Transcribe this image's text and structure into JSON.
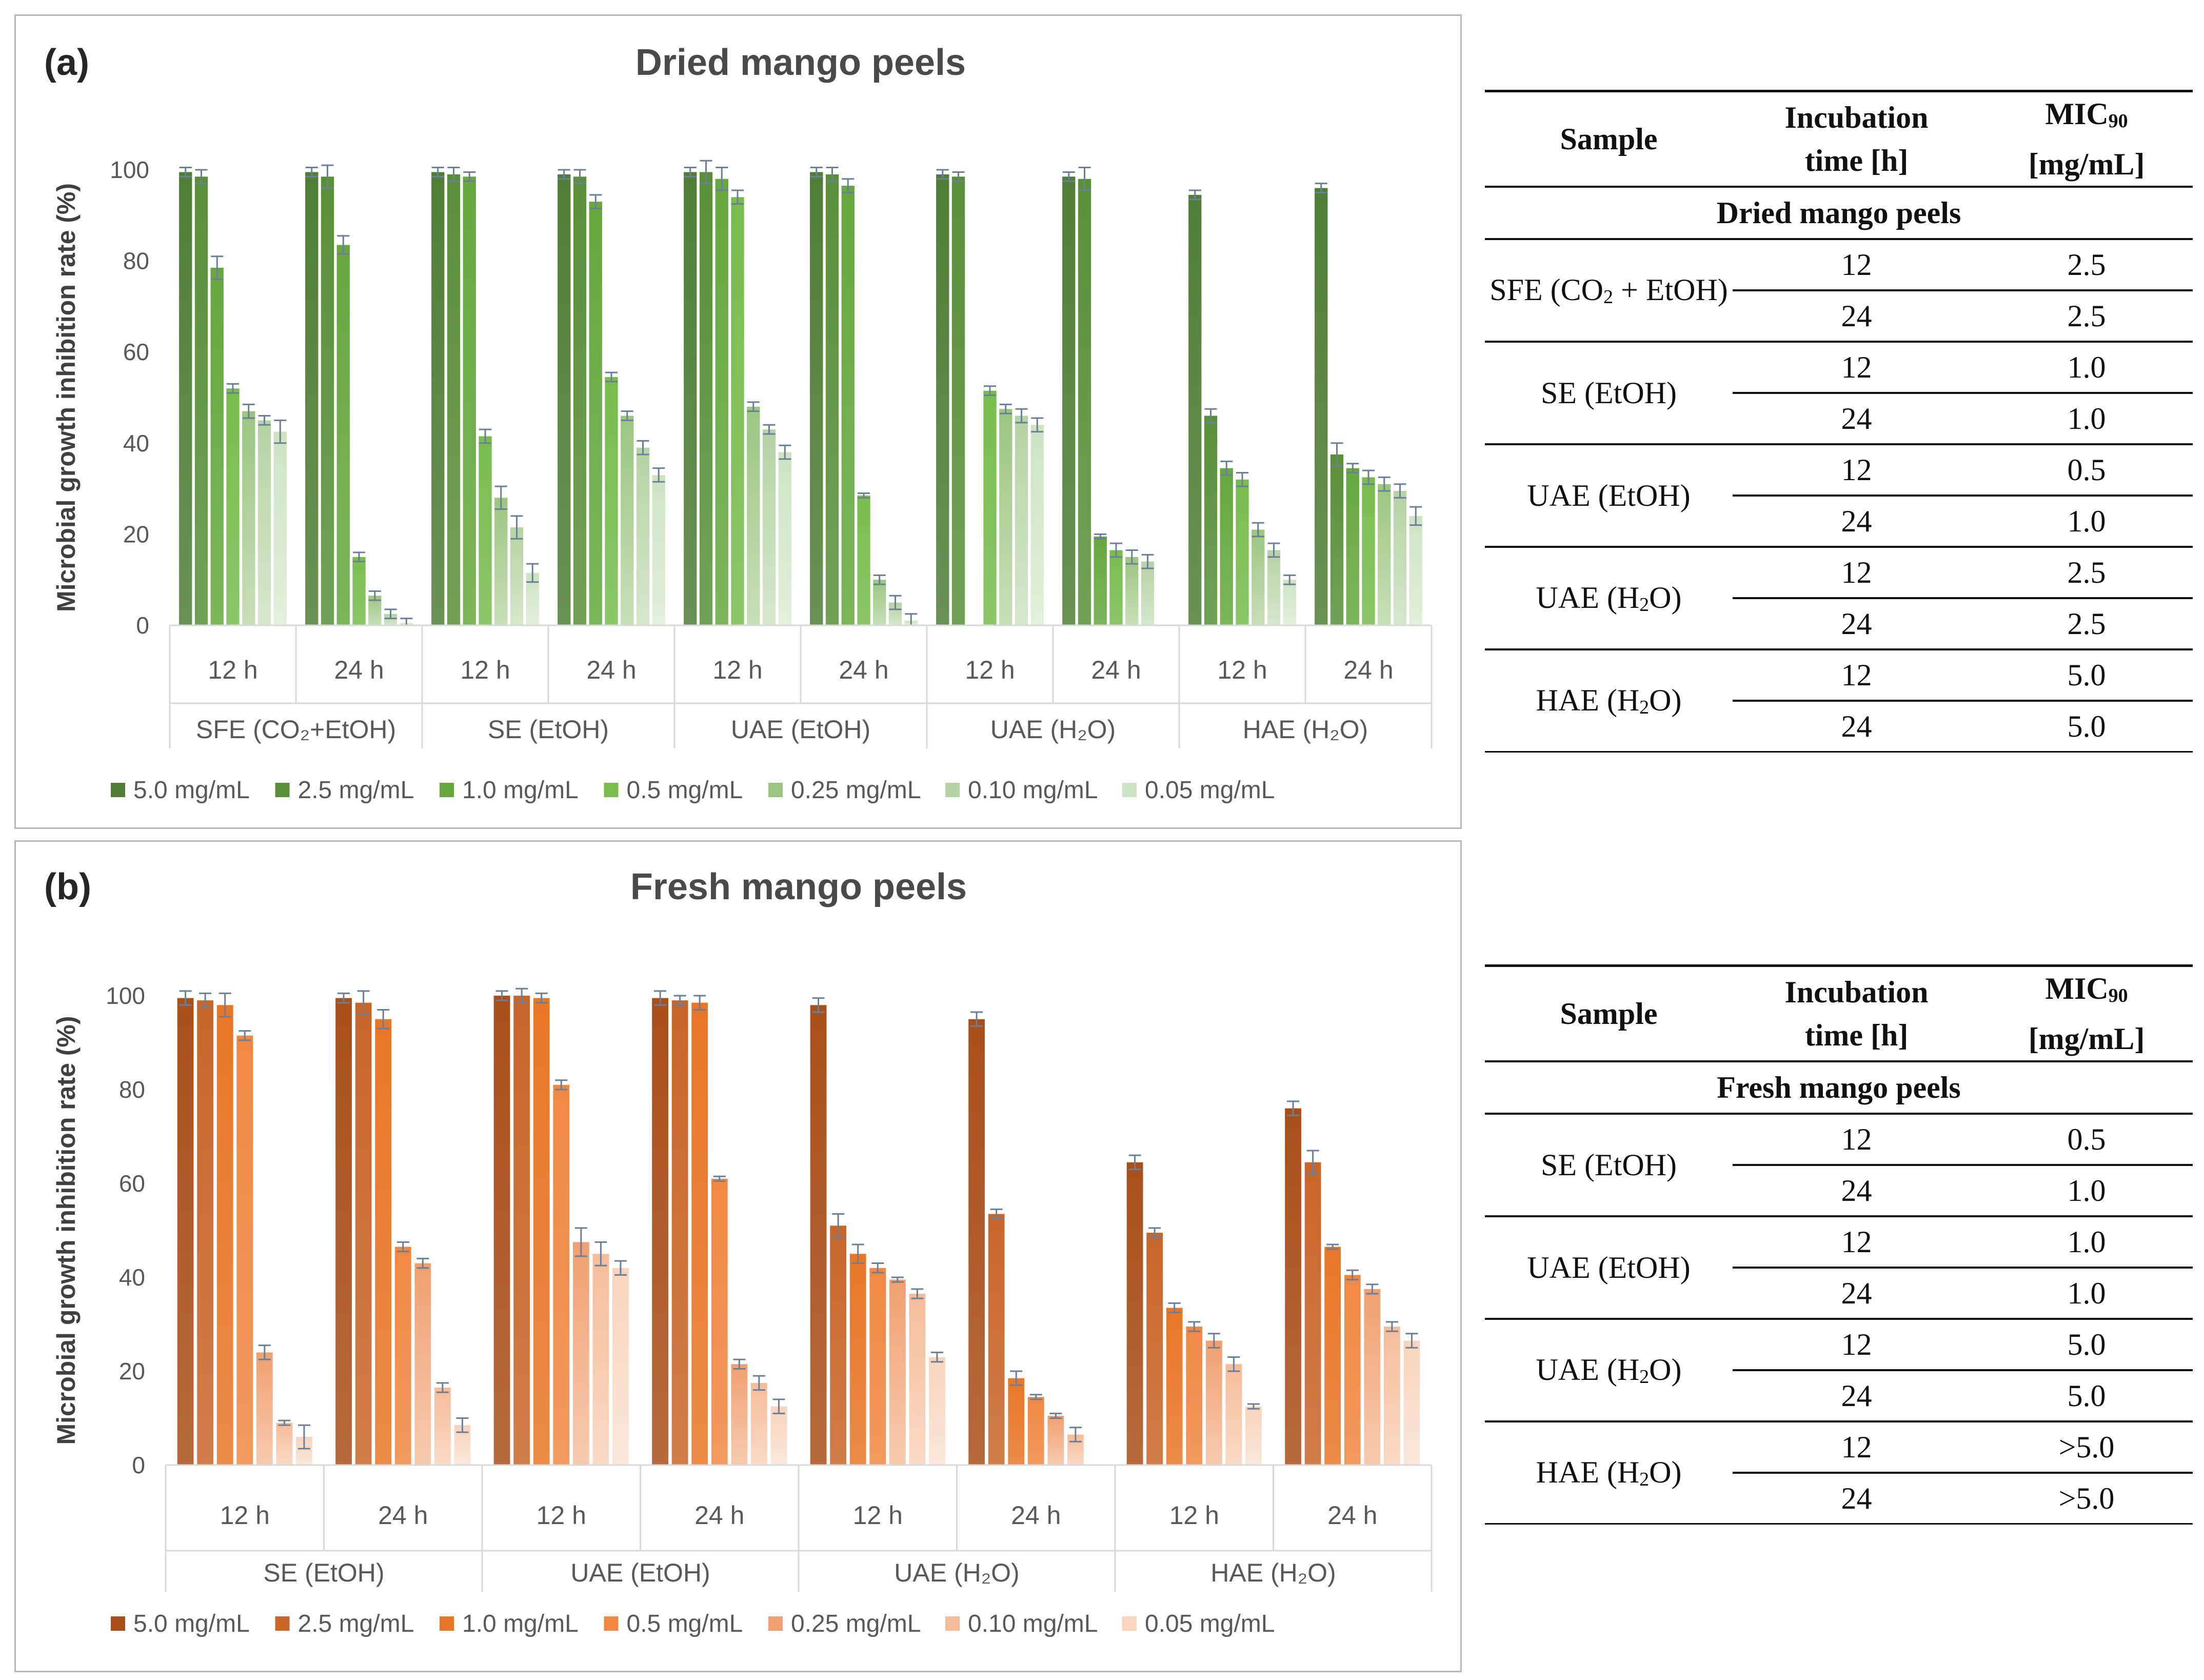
{
  "colors": {
    "green": [
      "#507e36",
      "#5a8f3a",
      "#66a83e",
      "#78bc4e",
      "#9cc581",
      "#b5d3a3",
      "#cde3c2"
    ],
    "orange": [
      "#a94f1a",
      "#c8662a",
      "#e87627",
      "#f08843",
      "#f0a070",
      "#f5bc99",
      "#f8d4bd"
    ]
  },
  "chart_data": [
    {
      "type": "bar",
      "panel_label": "(a)",
      "title": "Dried mango peels",
      "ylabel": "Microbial growth inhibition rate (%)",
      "ylim": [
        0,
        100
      ],
      "yticks": [
        0,
        20,
        40,
        60,
        80,
        100
      ],
      "time_labels": [
        "12 h",
        "24 h"
      ],
      "groups": [
        "SFE (CO₂+EtOH)",
        "SE (EtOH)",
        "UAE (EtOH)",
        "UAE (H₂O)",
        "HAE (H₂O)"
      ],
      "series_names": [
        "5.0 mg/mL",
        "2.5 mg/mL",
        "1.0 mg/mL",
        "0.5 mg/mL",
        "0.25 mg/mL",
        "0.10 mg/mL",
        "0.05 mg/mL"
      ],
      "values": [
        [
          99.5,
          98.5,
          78.5,
          52,
          47,
          45,
          42.5
        ],
        [
          99.5,
          98.5,
          83.5,
          15,
          6.5,
          2.5,
          0.5
        ],
        [
          99.5,
          99,
          98.5,
          41.5,
          28,
          21.5,
          11.5
        ],
        [
          99,
          98.5,
          93,
          54.5,
          46,
          39,
          33
        ],
        [
          99.5,
          99.5,
          98,
          94,
          48,
          43,
          38
        ],
        [
          99.5,
          99,
          96.5,
          28.5,
          10,
          5,
          1
        ],
        [
          99,
          98.5,
          0,
          51.5,
          47.5,
          46,
          44
        ],
        [
          98.5,
          98,
          19.5,
          16.5,
          15,
          14,
          0
        ],
        [
          94.5,
          46,
          34.5,
          32,
          21,
          16.5,
          10
        ],
        [
          96,
          37.5,
          34.5,
          32.5,
          31,
          29.5,
          24
        ]
      ],
      "errors": [
        [
          1,
          1.5,
          2.5,
          1,
          1.5,
          1,
          2.5
        ],
        [
          1,
          2.5,
          2,
          1,
          1,
          1,
          1
        ],
        [
          1,
          1.5,
          1,
          1.5,
          2.5,
          2.5,
          2
        ],
        [
          1,
          1.5,
          1.5,
          1,
          1,
          1.5,
          1.5
        ],
        [
          1,
          2.5,
          2.5,
          1.5,
          1,
          1,
          1.5
        ],
        [
          1,
          1.5,
          1.5,
          0.5,
          1,
          1.5,
          1.5
        ],
        [
          1,
          1,
          0,
          1,
          1,
          1.5,
          1.5
        ],
        [
          1,
          2.5,
          0.5,
          1.5,
          1.5,
          1.5,
          0
        ],
        [
          1,
          1.5,
          1.5,
          1.5,
          1.5,
          1.5,
          1
        ],
        [
          1,
          2.5,
          1,
          1.5,
          1.5,
          1.5,
          2
        ]
      ]
    },
    {
      "type": "bar",
      "panel_label": "(b)",
      "title": "Fresh mango peels",
      "ylabel": "Microbial growth inhibition rate (%)",
      "ylim": [
        0,
        100
      ],
      "yticks": [
        0,
        20,
        40,
        60,
        80,
        100
      ],
      "time_labels": [
        "12 h",
        "24 h"
      ],
      "groups": [
        "SE (EtOH)",
        "UAE (EtOH)",
        "UAE (H₂O)",
        "HAE (H₂O)"
      ],
      "series_names": [
        "5.0 mg/mL",
        "2.5 mg/mL",
        "1.0 mg/mL",
        "0.5 mg/mL",
        "0.25 mg/mL",
        "0.10 mg/mL",
        "0.05 mg/mL"
      ],
      "values": [
        [
          99.5,
          99,
          98,
          91.5,
          24,
          9,
          6
        ],
        [
          99.5,
          98.5,
          95,
          46.5,
          43,
          16.5,
          8.5
        ],
        [
          100,
          100,
          99.5,
          81,
          47.5,
          45,
          42
        ],
        [
          99.5,
          99,
          98.5,
          61,
          21.5,
          17.5,
          12.5
        ],
        [
          98,
          51,
          45,
          42,
          39.5,
          36.5,
          23
        ],
        [
          95,
          53.5,
          18.5,
          14.5,
          10.5,
          6.5,
          0
        ],
        [
          64.5,
          49.5,
          33.5,
          29.5,
          26.5,
          21.5,
          12.5
        ],
        [
          76,
          64.5,
          46.5,
          40.5,
          37.5,
          29.5,
          26.5
        ]
      ],
      "errors": [
        [
          1.5,
          1.5,
          2.5,
          1,
          1.5,
          0.5,
          2.5
        ],
        [
          1,
          2.5,
          2,
          1,
          1,
          1,
          1.5
        ],
        [
          1,
          1.5,
          1,
          1,
          3,
          2.5,
          1.5
        ],
        [
          1.5,
          1,
          1.5,
          0.5,
          1,
          1.5,
          1.5
        ],
        [
          1.5,
          2.5,
          2,
          1,
          0.5,
          1,
          1
        ],
        [
          1.5,
          1,
          1.5,
          0.5,
          0.5,
          1.5,
          0
        ],
        [
          1.5,
          1,
          1,
          1,
          1.5,
          1.5,
          0.5
        ],
        [
          1.5,
          2.5,
          0.5,
          1,
          1,
          1,
          1.5
        ]
      ]
    }
  ],
  "tables": [
    {
      "header_sample": "Sample",
      "header_time": "Incubation time [h]",
      "header_mic": "MIC90 [mg/mL]",
      "section": "Dried mango peels",
      "rows": [
        {
          "sample": "SFE (CO2 + EtOH)",
          "t1": "12",
          "m1": "2.5",
          "t2": "24",
          "m2": "2.5"
        },
        {
          "sample": "SE (EtOH)",
          "t1": "12",
          "m1": "1.0",
          "t2": "24",
          "m2": "1.0"
        },
        {
          "sample": "UAE (EtOH)",
          "t1": "12",
          "m1": "0.5",
          "t2": "24",
          "m2": "1.0"
        },
        {
          "sample": "UAE (H2O)",
          "t1": "12",
          "m1": "2.5",
          "t2": "24",
          "m2": "2.5"
        },
        {
          "sample": "HAE (H2O)",
          "t1": "12",
          "m1": "5.0",
          "t2": "24",
          "m2": "5.0"
        }
      ]
    },
    {
      "header_sample": "Sample",
      "header_time": "Incubation time [h]",
      "header_mic": "MIC90 [mg/mL]",
      "section": "Fresh mango peels",
      "rows": [
        {
          "sample": "SE (EtOH)",
          "t1": "12",
          "m1": "0.5",
          "t2": "24",
          "m2": "1.0"
        },
        {
          "sample": "UAE (EtOH)",
          "t1": "12",
          "m1": "1.0",
          "t2": "24",
          "m2": "1.0"
        },
        {
          "sample": "UAE (H2O)",
          "t1": "12",
          "m1": "5.0",
          "t2": "24",
          "m2": "5.0"
        },
        {
          "sample": "HAE (H2O)",
          "t1": "12",
          "m1": ">5.0",
          "t2": "24",
          "m2": ">5.0"
        }
      ]
    }
  ]
}
